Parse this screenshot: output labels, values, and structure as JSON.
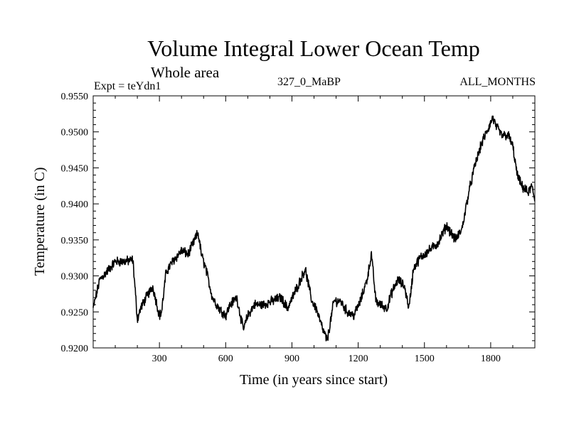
{
  "chart_data": {
    "type": "line",
    "title": "Volume Integral Lower Ocean Temp",
    "subtitle": "Whole area",
    "experiment": "Expt = teYdn1",
    "period": "327_0_MaBP",
    "months": "ALL_MONTHS",
    "xlabel": "Time (in years since start)",
    "ylabel": "Temperature (in C)",
    "xlim": [
      0,
      2000
    ],
    "ylim": [
      0.92,
      0.955
    ],
    "xticks": [
      300,
      600,
      900,
      1200,
      1500,
      1800
    ],
    "xtick_labels": [
      "300",
      "600",
      "900",
      "1200",
      "1500",
      "1800"
    ],
    "yticks": [
      0.92,
      0.925,
      0.93,
      0.935,
      0.94,
      0.945,
      0.95,
      0.955
    ],
    "ytick_labels": [
      "0.9200",
      "0.9250",
      "0.9300",
      "0.9350",
      "0.9400",
      "0.9450",
      "0.9500",
      "0.9550"
    ],
    "series": [
      {
        "name": "Volume integral lower ocean temperature",
        "x": [
          0,
          30,
          60,
          100,
          140,
          180,
          200,
          215,
          240,
          270,
          300,
          310,
          330,
          360,
          400,
          430,
          460,
          475,
          490,
          510,
          540,
          570,
          600,
          620,
          650,
          680,
          700,
          730,
          770,
          810,
          850,
          880,
          910,
          940,
          960,
          990,
          1010,
          1040,
          1060,
          1090,
          1120,
          1150,
          1180,
          1210,
          1240,
          1260,
          1280,
          1300,
          1330,
          1350,
          1380,
          1410,
          1430,
          1450,
          1480,
          1520,
          1560,
          1600,
          1640,
          1670,
          1700,
          1730,
          1760,
          1790,
          1810,
          1820,
          1850,
          1880,
          1900,
          1920,
          1940,
          1970,
          1985,
          2000
        ],
        "y": [
          0.9255,
          0.9295,
          0.9305,
          0.932,
          0.932,
          0.9322,
          0.924,
          0.9255,
          0.927,
          0.9285,
          0.9245,
          0.925,
          0.9305,
          0.932,
          0.9335,
          0.933,
          0.935,
          0.936,
          0.933,
          0.931,
          0.927,
          0.9255,
          0.9245,
          0.926,
          0.927,
          0.9225,
          0.9245,
          0.926,
          0.926,
          0.9265,
          0.927,
          0.9255,
          0.9275,
          0.9295,
          0.931,
          0.9265,
          0.9255,
          0.9225,
          0.921,
          0.9265,
          0.9265,
          0.925,
          0.9245,
          0.9265,
          0.9295,
          0.933,
          0.9265,
          0.926,
          0.9255,
          0.9275,
          0.9295,
          0.9285,
          0.9255,
          0.931,
          0.9325,
          0.9335,
          0.9345,
          0.937,
          0.935,
          0.9365,
          0.9415,
          0.9455,
          0.9485,
          0.9505,
          0.952,
          0.951,
          0.9495,
          0.9495,
          0.948,
          0.944,
          0.9425,
          0.9415,
          0.9425,
          0.9405
        ]
      }
    ]
  }
}
